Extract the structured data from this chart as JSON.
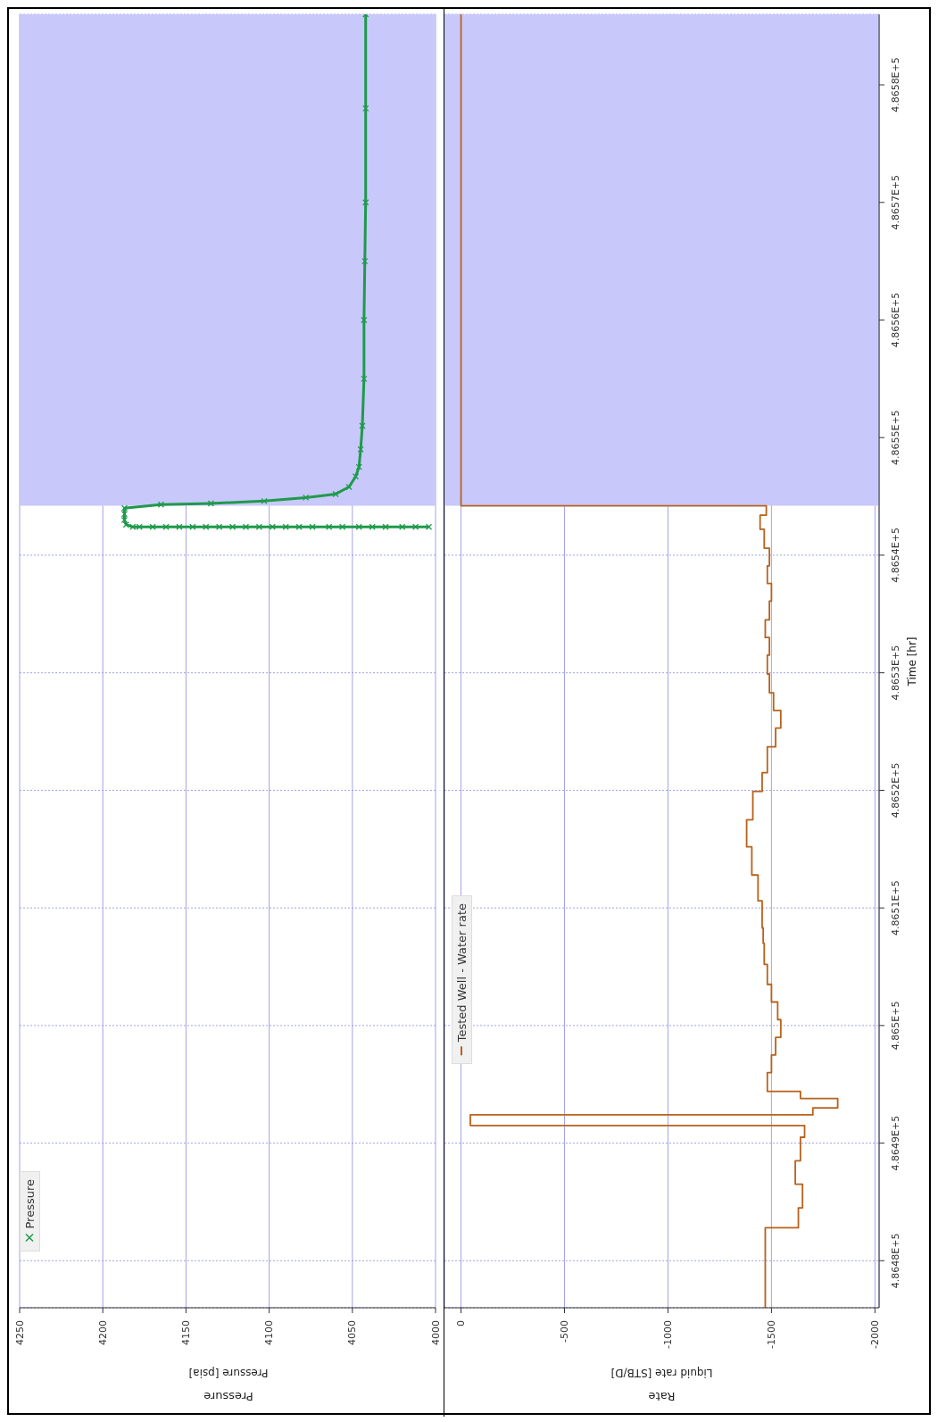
{
  "chart_data": [
    {
      "type": "line",
      "orientation": "horizontal",
      "title": "Pressure",
      "xlabel": "Pressure [psia]",
      "marker": "cross",
      "grid": true,
      "legend": "bottom left",
      "tick_labels": "x",
      "ylim": [
        486476,
        486586
      ],
      "yticks": [
        {
          "value": 486480,
          "label": null
        },
        {
          "value": 486490,
          "label": null
        },
        {
          "value": 486500,
          "label": null
        },
        {
          "value": 486510,
          "label": null
        },
        {
          "value": 486520,
          "label": null
        },
        {
          "value": 486530,
          "label": null
        },
        {
          "value": 486540,
          "label": null
        },
        {
          "value": 486550,
          "label": null
        },
        {
          "value": 486560,
          "label": null
        },
        {
          "value": 486570,
          "label": null
        },
        {
          "value": 486580,
          "label": null
        }
      ],
      "xlim": [
        4250,
        4000
      ],
      "xticks": [
        4250,
        4200,
        4150,
        4100,
        4050,
        4000
      ],
      "bands": [
        {
          "axis": "y",
          "from": 486544.2,
          "to": 486586,
          "color": "#c8c8fa"
        }
      ],
      "series": [
        {
          "name": "Pressure",
          "color": "#1f9a4c",
          "x": [
            486542.4,
            486542.4,
            486542.4,
            486542.4,
            486542.4,
            486542.4,
            486542.4,
            486542.4,
            486542.4,
            486542.4,
            486542.4,
            486542.4,
            486542.4,
            486542.4,
            486542.4,
            486542.4,
            486542.4,
            486542.4,
            486542.4,
            486542.4,
            486542.4,
            486542.4,
            486542.4,
            486542.6,
            486543.0,
            486543.5,
            486544.0,
            486544.3,
            486544.4,
            486544.6,
            486544.9,
            486545.2,
            486545.8,
            486546.7,
            486547.5,
            486549,
            486551,
            486555,
            486560,
            486565,
            486570,
            486578,
            486586
          ],
          "values": [
            4004,
            4012,
            4020,
            4030,
            4038,
            4046,
            4056,
            4064,
            4074,
            4082,
            4090,
            4098,
            4106,
            4114,
            4122,
            4130,
            4138,
            4146,
            4154,
            4162,
            4170,
            4178,
            4182,
            4186,
            4187,
            4187,
            4187,
            4165,
            4135,
            4103,
            4078,
            4060,
            4052,
            4048,
            4046,
            4045,
            4044,
            4043,
            4043,
            4042.5,
            4042,
            4042,
            4042
          ]
        }
      ]
    },
    {
      "type": "step",
      "orientation": "horizontal",
      "title": "Rate",
      "xlabel": "Liquid rate [STB/D]",
      "ylabel": "Time [hr]",
      "grid": true,
      "legend": "bottom left",
      "ylim": [
        486476,
        486586
      ],
      "yticks": [
        {
          "value": 486480,
          "label": "4.8648E+5"
        },
        {
          "value": 486490,
          "label": "4.8649E+5"
        },
        {
          "value": 486500,
          "label": "4.865E+5"
        },
        {
          "value": 486510,
          "label": "4.8651E+5"
        },
        {
          "value": 486520,
          "label": "4.8652E+5"
        },
        {
          "value": 486530,
          "label": "4.8653E+5"
        },
        {
          "value": 486540,
          "label": "4.8654E+5"
        },
        {
          "value": 486550,
          "label": "4.8655E+5"
        },
        {
          "value": 486560,
          "label": "4.8656E+5"
        },
        {
          "value": 486570,
          "label": "4.8657E+5"
        },
        {
          "value": 486580,
          "label": "4.8658E+5"
        }
      ],
      "xlim": [
        80,
        -2020
      ],
      "xticks": [
        0,
        -500,
        -1000,
        -1500,
        -2000
      ],
      "bands": [
        {
          "axis": "y",
          "from": 486544.2,
          "to": 486586,
          "color": "#c8c8fa"
        }
      ],
      "series": [
        {
          "name": "Tested Well - Water rate",
          "color": "#b8621b",
          "x": [
            486476,
            486482.8,
            486484.5,
            486486.5,
            486488.5,
            486490.5,
            486491.5,
            486492.4,
            486493.0,
            486493.8,
            486494.4,
            486496,
            486497.5,
            486499,
            486500.5,
            486502,
            486503.5,
            486505.2,
            486507,
            486508.3,
            486510.6,
            486512.8,
            486515.2,
            486517.5,
            486519.9,
            486521.5,
            486523.7,
            486525.3,
            486526.8,
            486528.3,
            486529.9,
            486531.5,
            486533,
            486534.5,
            486536.1,
            486537.6,
            486539.1,
            486540.6,
            486542.2,
            486543.4,
            486544.2,
            486586
          ],
          "values": [
            -1470,
            -1630,
            -1650,
            -1615,
            -1640,
            -1660,
            -45,
            -1700,
            -1820,
            -1640,
            -1480,
            -1500,
            -1520,
            -1545,
            -1530,
            -1500,
            -1480,
            -1465,
            -1460,
            -1455,
            -1435,
            -1405,
            -1380,
            -1410,
            -1455,
            -1480,
            -1520,
            -1545,
            -1510,
            -1490,
            -1480,
            -1490,
            -1470,
            -1490,
            -1500,
            -1480,
            -1490,
            -1465,
            -1445,
            -1475,
            0,
            0
          ]
        }
      ]
    }
  ]
}
